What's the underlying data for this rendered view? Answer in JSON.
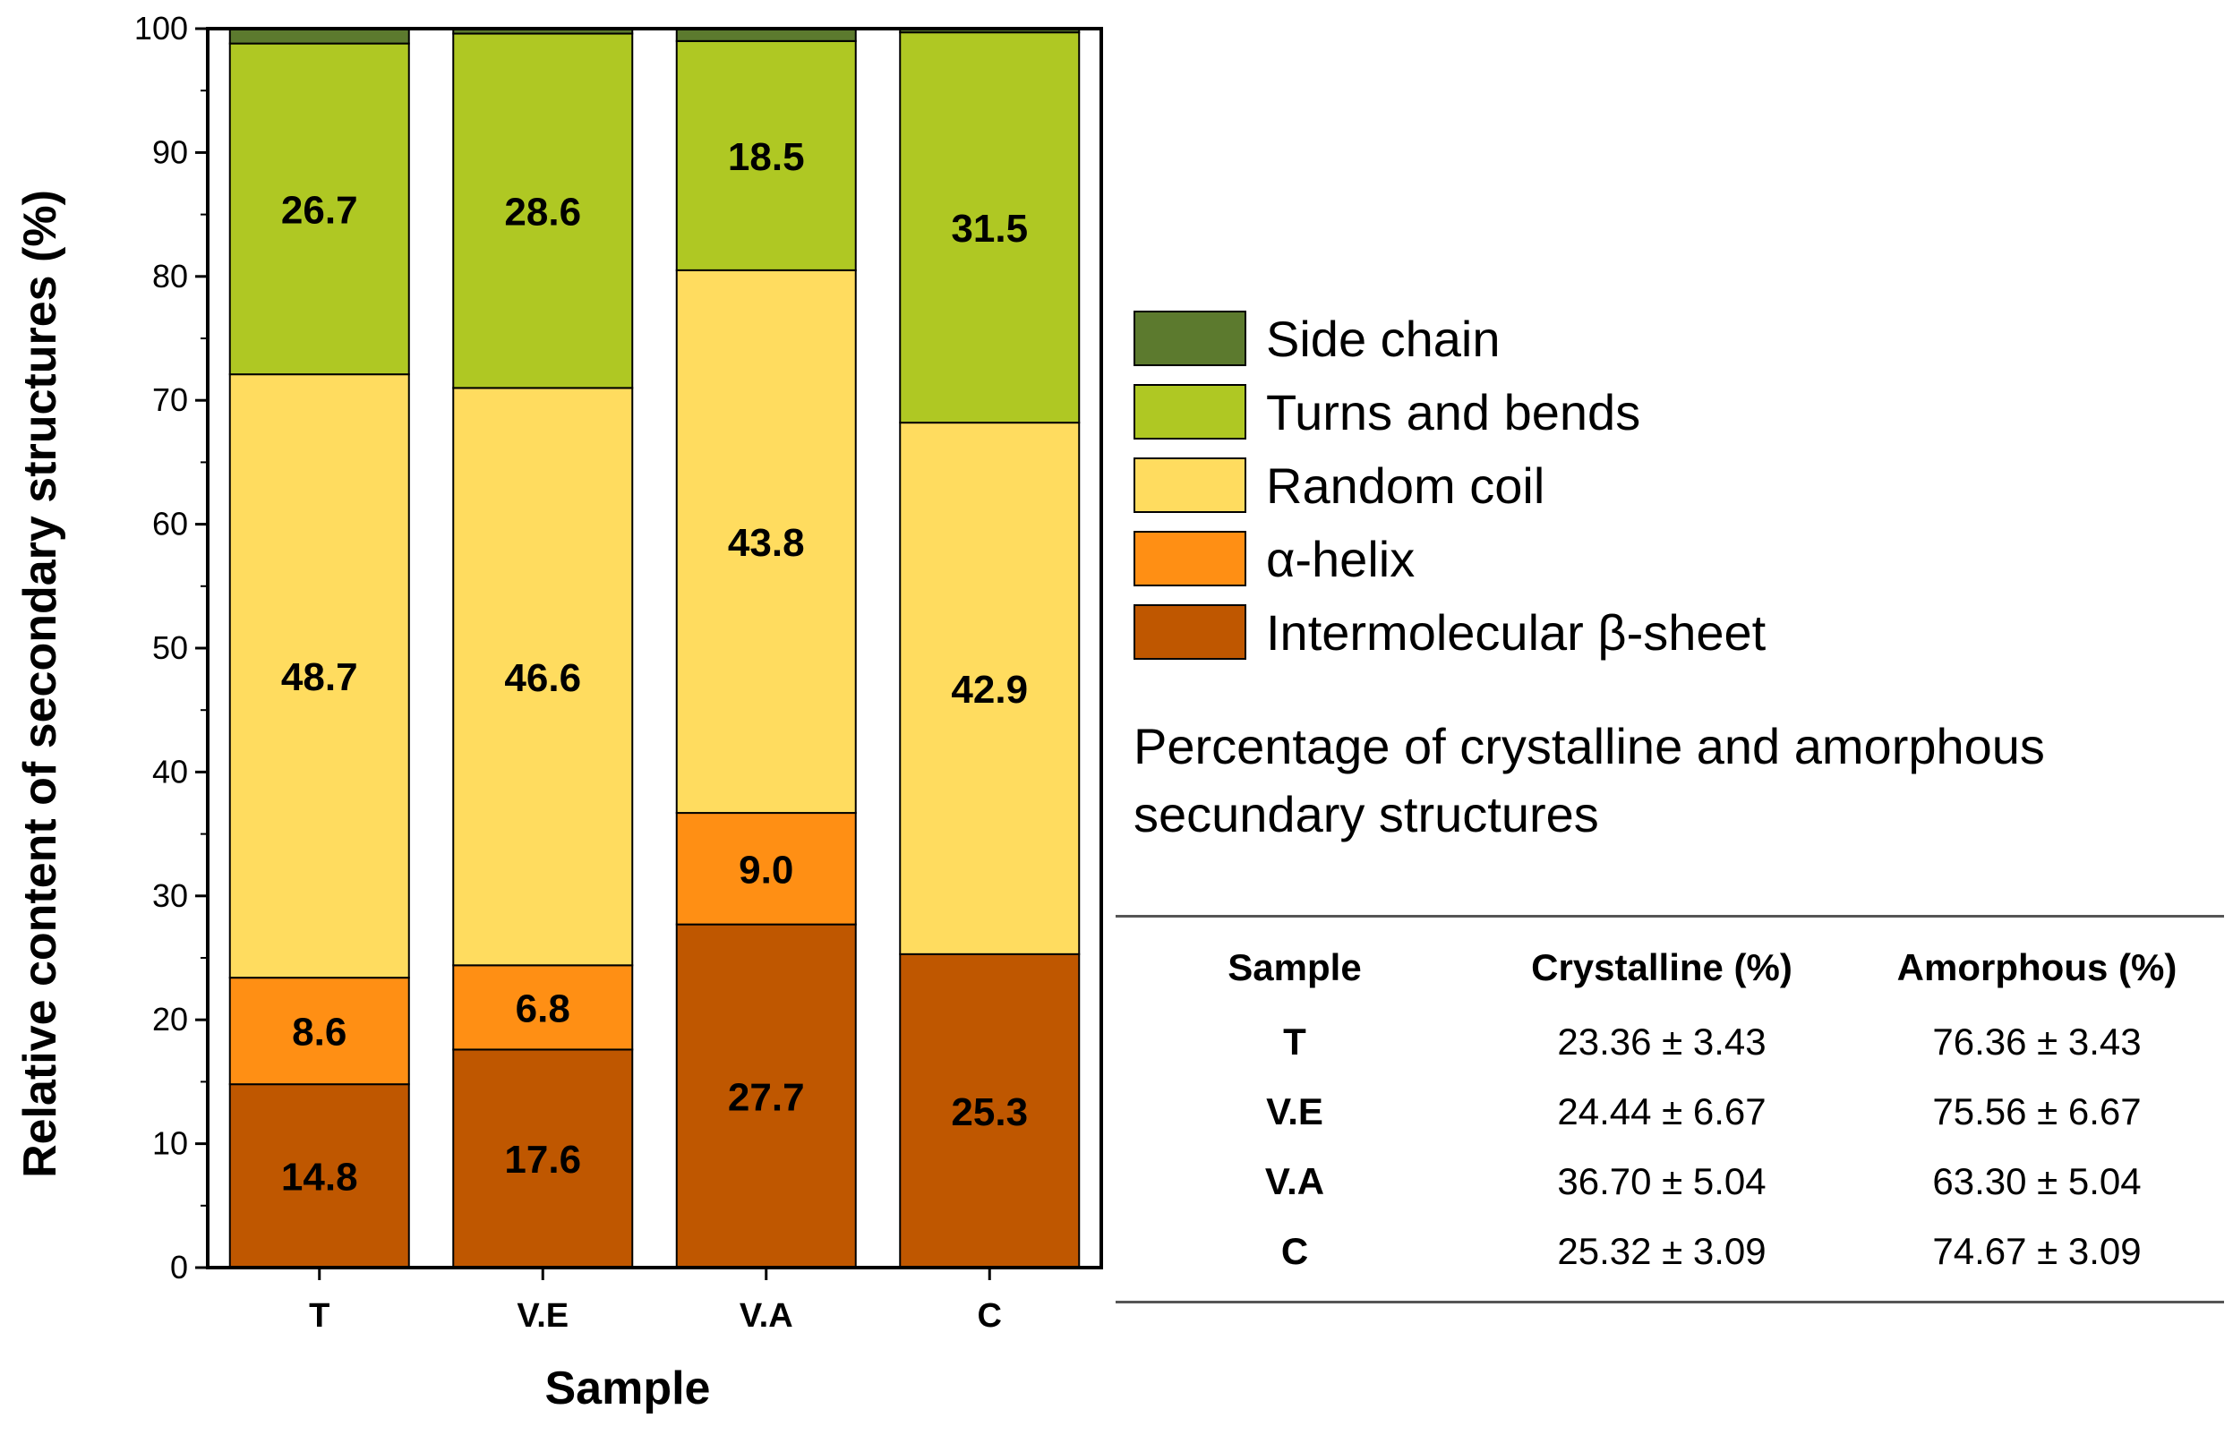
{
  "chart_data": {
    "type": "bar",
    "stacked": true,
    "title": "",
    "xlabel": "Sample",
    "ylabel": "Relative content of secondary structures (%)",
    "ylim": [
      0,
      100
    ],
    "yticks": [
      0,
      10,
      20,
      30,
      40,
      50,
      60,
      70,
      80,
      90,
      100
    ],
    "categories": [
      "T",
      "V.E",
      "V.A",
      "C"
    ],
    "series": [
      {
        "name": "Intermolecular β-sheet",
        "color": "#BF5700",
        "values": [
          14.8,
          17.6,
          27.7,
          25.3
        ],
        "labels": [
          "14.8",
          "17.6",
          "27.7",
          "25.3"
        ]
      },
      {
        "name": "α-helix",
        "color": "#FF8F14",
        "values": [
          8.6,
          6.8,
          9.0,
          0
        ],
        "labels": [
          "8.6",
          "6.8",
          "9.0",
          ""
        ]
      },
      {
        "name": "Random coil",
        "color": "#FFDC5F",
        "values": [
          48.7,
          46.6,
          43.8,
          42.9
        ],
        "labels": [
          "48.7",
          "46.6",
          "43.8",
          "42.9"
        ]
      },
      {
        "name": "Turns and bends",
        "color": "#AFC823",
        "values": [
          26.7,
          28.6,
          18.5,
          31.5
        ],
        "labels": [
          "26.7",
          "28.6",
          "18.5",
          "31.5"
        ]
      },
      {
        "name": "Side chain",
        "color": "#5C7A2E",
        "values": [
          1.2,
          0.4,
          1.0,
          0.3
        ],
        "labels": [
          "",
          "",
          "",
          ""
        ]
      }
    ],
    "legend_position": "right",
    "legend_order": [
      "Side chain",
      "Turns and bends",
      "Random coil",
      "α-helix",
      "Intermolecular β-sheet"
    ]
  },
  "legend": {
    "items": [
      {
        "label": "Side chain",
        "color": "#5C7A2E"
      },
      {
        "label": "Turns and bends",
        "color": "#AFC823"
      },
      {
        "label": "Random coil",
        "color": "#FFDC5F"
      },
      {
        "label": "α-helix",
        "color": "#FF8F14"
      },
      {
        "label": "Intermolecular β-sheet",
        "color": "#BF5700"
      }
    ]
  },
  "table": {
    "title_line1": "Percentage of crystalline and amorphous",
    "title_line2": "secundary structures",
    "headers": [
      "Sample",
      "Crystalline (%)",
      "Amorphous (%)"
    ],
    "rows": [
      {
        "sample": "T",
        "crystalline": "23.36 ± 3.43",
        "amorphous": "76.36 ± 3.43"
      },
      {
        "sample": "V.E",
        "crystalline": "24.44 ± 6.67",
        "amorphous": "75.56 ± 6.67"
      },
      {
        "sample": "V.A",
        "crystalline": "36.70 ± 5.04",
        "amorphous": "63.30 ± 5.04"
      },
      {
        "sample": "C",
        "crystalline": "25.32 ± 3.09",
        "amorphous": "74.67 ± 3.09"
      }
    ]
  }
}
